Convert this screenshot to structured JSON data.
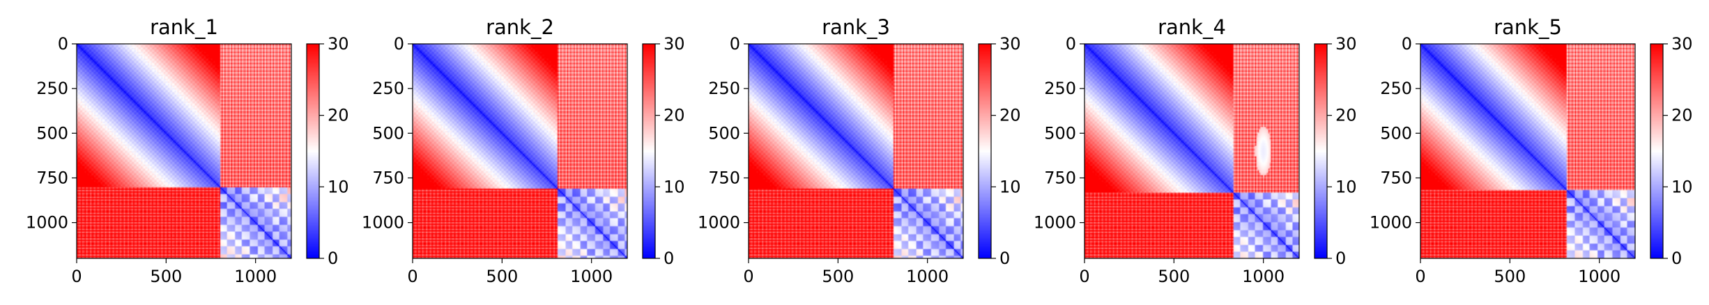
{
  "chart_data": {
    "type": "heatmap",
    "shared": {
      "matrix_size": 1200,
      "split_index": 810,
      "colormap": "bwr",
      "color_range": [
        0,
        30
      ],
      "colorbar_ticks": [
        0,
        10,
        20,
        30
      ],
      "x_ticks": [
        0,
        500,
        1000
      ],
      "y_ticks": [
        0,
        250,
        500,
        750,
        1000
      ],
      "xlim": [
        0,
        1200
      ],
      "ylim": [
        1200,
        0
      ],
      "grid": false
    },
    "panels": [
      {
        "title": "rank_1",
        "split_index": 800,
        "oval_anomaly": false
      },
      {
        "title": "rank_2",
        "split_index": 810,
        "oval_anomaly": false
      },
      {
        "title": "rank_3",
        "split_index": 810,
        "oval_anomaly": false
      },
      {
        "title": "rank_4",
        "split_index": 830,
        "oval_anomaly": true
      },
      {
        "title": "rank_5",
        "split_index": 820,
        "oval_anomaly": false
      }
    ]
  }
}
